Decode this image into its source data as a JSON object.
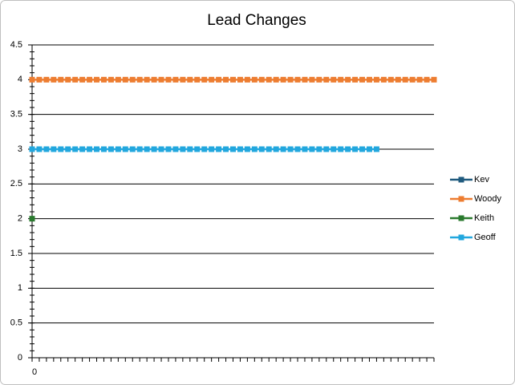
{
  "chart_data": {
    "type": "line",
    "title": "Lead Changes",
    "categories": [
      "0",
      null,
      null,
      null,
      null,
      null,
      null,
      null,
      null,
      null,
      null,
      null,
      null,
      null,
      null,
      null,
      null,
      null,
      null,
      null,
      null,
      null,
      null,
      null,
      null,
      null,
      null,
      null,
      null,
      null,
      null,
      null,
      null,
      null,
      null,
      null,
      null,
      null,
      null,
      null,
      null,
      null,
      null,
      null,
      null,
      null,
      null,
      null,
      null,
      null,
      null,
      null,
      null,
      null,
      null,
      null,
      null
    ],
    "series": [
      {
        "name": "Kev",
        "color": "#1f5a7e",
        "values": [
          null,
          null,
          null,
          null,
          null,
          null,
          null,
          null,
          null,
          null,
          null,
          null,
          null,
          null,
          null,
          null,
          null,
          null,
          null,
          null,
          null,
          null,
          null,
          null,
          null,
          null,
          null,
          null,
          null,
          null,
          null,
          null,
          null,
          null,
          null,
          null,
          null,
          null,
          null,
          null,
          null,
          null,
          null,
          null,
          null,
          null,
          null,
          null,
          null,
          null,
          null,
          null,
          null,
          null,
          null,
          null,
          null
        ]
      },
      {
        "name": "Woody",
        "color": "#ed7d31",
        "values": [
          4,
          4,
          4,
          4,
          4,
          4,
          4,
          4,
          4,
          4,
          4,
          4,
          4,
          4,
          4,
          4,
          4,
          4,
          4,
          4,
          4,
          4,
          4,
          4,
          4,
          4,
          4,
          4,
          4,
          4,
          4,
          4,
          4,
          4,
          4,
          4,
          4,
          4,
          4,
          4,
          4,
          4,
          4,
          4,
          4,
          4,
          4,
          4,
          4,
          4,
          4,
          4,
          4,
          4,
          4,
          4,
          4
        ]
      },
      {
        "name": "Keith",
        "color": "#2a7a2e",
        "values": [
          2,
          null,
          null,
          null,
          null,
          null,
          null,
          null,
          null,
          null,
          null,
          null,
          null,
          null,
          null,
          null,
          null,
          null,
          null,
          null,
          null,
          null,
          null,
          null,
          null,
          null,
          null,
          null,
          null,
          null,
          null,
          null,
          null,
          null,
          null,
          null,
          null,
          null,
          null,
          null,
          null,
          null,
          null,
          null,
          null,
          null,
          null,
          null,
          null,
          null,
          null,
          null,
          null,
          null,
          null,
          null,
          null
        ]
      },
      {
        "name": "Geoff",
        "color": "#22a7de",
        "values": [
          3,
          3,
          3,
          3,
          3,
          3,
          3,
          3,
          3,
          3,
          3,
          3,
          3,
          3,
          3,
          3,
          3,
          3,
          3,
          3,
          3,
          3,
          3,
          3,
          3,
          3,
          3,
          3,
          3,
          3,
          3,
          3,
          3,
          3,
          3,
          3,
          3,
          3,
          3,
          3,
          3,
          3,
          3,
          3,
          3,
          3,
          3,
          3,
          3,
          null,
          null,
          null,
          null,
          null,
          null,
          null,
          null
        ]
      }
    ],
    "ylim": [
      0,
      4.5
    ],
    "yticks": [
      0,
      0.5,
      1,
      1.5,
      2,
      2.5,
      3,
      3.5,
      4,
      4.5
    ],
    "grid": true,
    "legend": "right"
  }
}
